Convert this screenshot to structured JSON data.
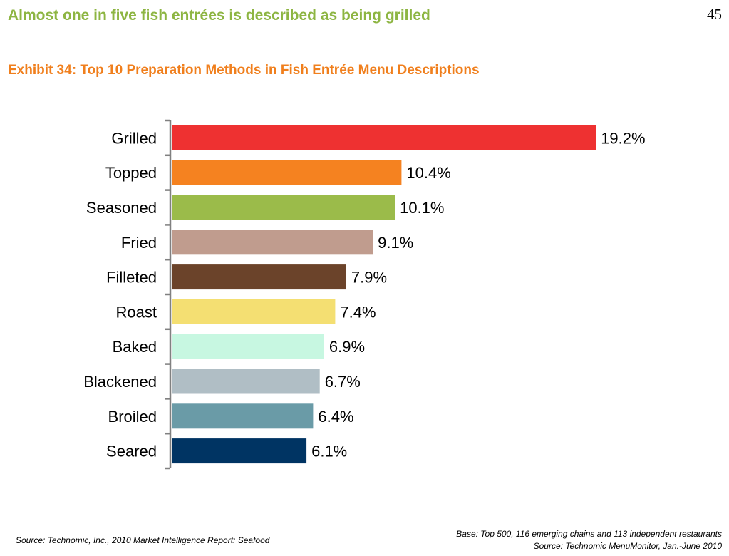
{
  "headline": "Almost one in five fish entrées is described as being grilled",
  "page_number": "45",
  "exhibit_title": "Exhibit 34: Top 10 Preparation Methods in Fish Entrée Menu Descriptions",
  "chart_data": {
    "type": "bar",
    "orientation": "horizontal",
    "categories": [
      "Grilled",
      "Topped",
      "Seasoned",
      "Fried",
      "Filleted",
      "Roast",
      "Baked",
      "Blackened",
      "Broiled",
      "Seared"
    ],
    "values": [
      19.2,
      10.4,
      10.1,
      9.1,
      7.9,
      7.4,
      6.9,
      6.7,
      6.4,
      6.1
    ],
    "value_labels": [
      "19.2%",
      "10.4%",
      "10.1%",
      "9.1%",
      "7.9%",
      "7.4%",
      "6.9%",
      "6.7%",
      "6.4%",
      "6.1%"
    ],
    "colors": [
      "#ee3131",
      "#f58220",
      "#9bbb4a",
      "#c09c8e",
      "#6b432a",
      "#f4df72",
      "#c7f7e1",
      "#b0bec5",
      "#6a9ba7",
      "#003463"
    ],
    "xlim": [
      0,
      20
    ],
    "grid": false,
    "legend": "none"
  },
  "footer": {
    "source_left": "Source: Technomic, Inc., 2010 Market Intelligence Report: Seafood",
    "base_note": "Base: Top 500, 116 emerging chains and 113 independent restaurants",
    "source_right": "Source: Technomic MenuMonitor, Jan.-June 2010"
  }
}
